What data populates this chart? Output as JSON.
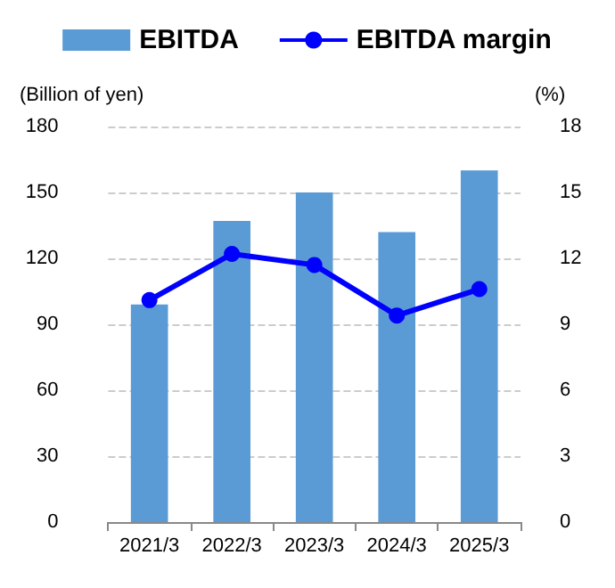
{
  "chart_data": {
    "type": "bar",
    "categories": [
      "2021/3",
      "2022/3",
      "2023/3",
      "2024/3",
      "2025/3"
    ],
    "series": [
      {
        "name": "EBITDA",
        "color": "#5b9bd5",
        "values": [
          99,
          137,
          150,
          132,
          160
        ]
      },
      {
        "name": "EBITDA margin",
        "type": "line",
        "axis": "y2",
        "color": "#0000ff",
        "values": [
          10.1,
          12.2,
          11.7,
          9.4,
          10.6
        ]
      }
    ],
    "ylabel": "(Billion of yen)",
    "y2label": "(%)",
    "ylim": [
      0,
      180
    ],
    "yticks": [
      0,
      30,
      60,
      90,
      120,
      150,
      180
    ],
    "y2lim": [
      0,
      18
    ],
    "y2ticks": [
      0,
      3,
      6,
      9,
      12,
      15,
      18
    ],
    "grid": "y",
    "legend": "top",
    "marker": "circle",
    "line_style": "solid"
  }
}
